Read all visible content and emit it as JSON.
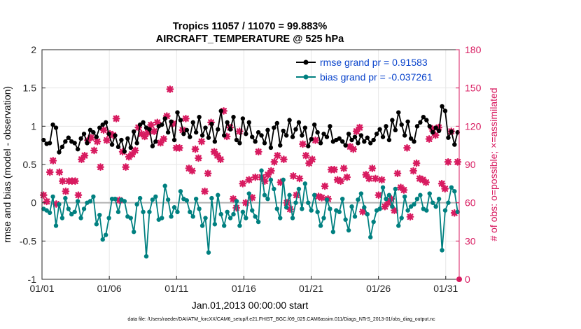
{
  "chart_data": {
    "type": "line",
    "title": "Tropics 11057 / 11070 = 99.883%",
    "subtitle": "AIRCRAFT_TEMPERATURE @ 525 hPa",
    "xlabel": "Jan.01,2013 00:00:00 start",
    "ylabel": "rmse and bias (model - observation)",
    "y2label": "# of obs: o=possible; ×=assimilated",
    "footnote": "data file: /Users/raeder/DAI/ATM_forcXX/CAM6_setup/f.e21.FHIST_BGC.f09_025.CAM6assim.011/Diags_NTrS_2013-01/obs_diag_output.nc",
    "x_tick_labels": [
      "01/01",
      "01/06",
      "01/11",
      "01/16",
      "01/21",
      "01/26",
      "01/31"
    ],
    "x_tick_days": [
      1,
      6,
      11,
      16,
      21,
      26,
      31
    ],
    "xlim": [
      1,
      32
    ],
    "ylim": [
      -1,
      2
    ],
    "y_ticks": [
      -1,
      -0.5,
      0,
      0.5,
      1,
      1.5,
      2
    ],
    "y2lim": [
      0,
      180
    ],
    "y2_ticks": [
      0,
      30,
      60,
      90,
      120,
      150,
      180
    ],
    "grid": true,
    "legend_position": "top-right",
    "colors": {
      "rmse": "#000000",
      "bias": "#008080",
      "obs": "#d81b60",
      "legend_text": "#0a44cc",
      "axis_right": "#d81b60",
      "zero_line": "#b0b0b0"
    },
    "series": [
      {
        "name": "rmse grand pr = 0.91583",
        "axis": "left",
        "values": [
          0.82,
          0.77,
          0.78,
          1.02,
          0.98,
          0.66,
          0.73,
          0.8,
          0.85,
          0.8,
          0.78,
          0.7,
          0.84,
          0.9,
          0.78,
          0.95,
          0.92,
          0.86,
          0.98,
          1.02,
          1.05,
          0.9,
          0.76,
          0.88,
          0.73,
          0.82,
          0.67,
          0.84,
          0.72,
          0.93,
          0.78,
          1.02,
          1.05,
          0.98,
          0.96,
          0.74,
          0.8,
          1.0,
          1.02,
          1.1,
          0.92,
          1.06,
          0.82,
          1.18,
          1.08,
          0.9,
          0.95,
          0.86,
          1.05,
          0.92,
          1.12,
          0.88,
          0.98,
          0.85,
          1.03,
          0.8,
          0.96,
          1.2,
          0.88,
          1.05,
          0.96,
          1.12,
          0.82,
          0.78,
          1.1,
          0.9,
          1.05,
          0.86,
          0.8,
          0.92,
          0.88,
          0.78,
          0.95,
          0.72,
          0.98,
          1.04,
          0.75,
          0.94,
          0.88,
          1.08,
          0.86,
          0.96,
          1.05,
          0.88,
          0.98,
          0.74,
          0.83,
          1.02,
          0.92,
          0.78,
          0.9,
          0.86,
          1.0,
          0.8,
          0.82,
          0.84,
          0.8,
          0.75,
          0.9,
          0.82,
          0.86,
          0.78,
          0.88,
          0.8,
          0.85,
          0.78,
          0.82,
          0.9,
          0.96,
          0.86,
          1.0,
          0.82,
          1.08,
          0.95,
          1.18,
          1.02,
          0.88,
          1.06,
          0.84,
          0.8,
          1.0,
          1.05,
          1.12,
          1.08,
          1.0,
          0.92,
          0.98,
          0.94,
          1.26,
          1.2,
          0.85,
          0.93,
          0.76,
          0.92
        ],
        "markers": "dot"
      },
      {
        "name": "bias grand pr = -0.037261",
        "axis": "left",
        "values": [
          -0.08,
          -0.1,
          -0.13,
          0.08,
          -0.3,
          -0.02,
          -0.2,
          0.06,
          -0.08,
          -0.15,
          -0.12,
          0.02,
          -0.2,
          -0.08,
          0.0,
          0.02,
          0.08,
          -0.28,
          -0.16,
          -0.48,
          -0.42,
          -0.2,
          0.05,
          0.05,
          -0.12,
          0.04,
          0.02,
          -0.18,
          -0.2,
          -0.38,
          -0.02,
          0.06,
          -0.12,
          -0.7,
          -0.12,
          0.04,
          0.08,
          -0.22,
          -0.2,
          0.22,
          0.04,
          -0.18,
          -0.06,
          -0.12,
          0.15,
          0.05,
          0.03,
          -0.12,
          -0.18,
          0.05,
          -0.08,
          -0.3,
          -0.2,
          -0.65,
          0.06,
          -0.28,
          0.1,
          -0.15,
          -0.3,
          -0.12,
          -0.2,
          -0.15,
          0.02,
          -0.3,
          -0.12,
          -0.2,
          0.12,
          -0.1,
          -0.18,
          -0.25,
          0.42,
          0.1,
          0.05,
          0.3,
          0.18,
          -0.08,
          -0.2,
          0.3,
          -0.06,
          0.1,
          -0.2,
          0.0,
          0.18,
          -0.08,
          0.25,
          0.0,
          -0.1,
          0.1,
          -0.12,
          -0.3,
          -0.2,
          0.04,
          -0.08,
          -0.38,
          -0.1,
          -0.12,
          0.05,
          -0.22,
          -0.36,
          -0.05,
          -0.18,
          0.04,
          0.12,
          -0.06,
          -0.15,
          -0.45,
          -0.25,
          -0.1,
          -0.08,
          0.2,
          0.05,
          0.1,
          -0.05,
          0.18,
          -0.3,
          -0.2,
          0.08,
          -0.1,
          -0.05,
          -0.02,
          0.05,
          0.1,
          -0.08,
          -0.1,
          0.12,
          0.0,
          -0.05,
          0.05,
          -0.62,
          -0.1,
          0.0,
          0.2,
          0.15,
          -0.12
        ],
        "markers": "dot"
      },
      {
        "name": "# of obs assimilated",
        "axis": "right",
        "values": [
          66,
          61,
          84,
          93,
          59,
          84,
          77,
          69,
          77,
          77,
          77,
          66,
          94,
          97,
          109,
          111,
          101,
          108,
          88,
          117,
          109,
          114,
          113,
          126,
          62,
          100,
          88,
          96,
          98,
          101,
          119,
          114,
          112,
          115,
          121,
          116,
          123,
          107,
          110,
          128,
          149,
          122,
          103,
          103,
          117,
          126,
          87,
          85,
          102,
          95,
          108,
          69,
          83,
          123,
          100,
          97,
          94,
          132,
          112,
          119,
          63,
          56,
          116,
          75,
          60,
          78,
          64,
          80,
          100,
          80,
          77,
          82,
          85,
          92,
          97,
          76,
          94,
          60,
          55,
          81,
          66,
          79,
          106,
          97,
          91,
          94,
          109,
          65,
          64,
          73,
          63,
          86,
          86,
          78,
          77,
          87,
          80,
          104,
          102,
          116,
          119,
          53,
          82,
          79,
          87,
          79,
          66,
          78,
          57,
          60,
          63,
          54,
          83,
          72,
          70,
          103,
          49,
          85,
          91,
          79,
          78,
          76,
          110,
          118,
          113,
          119,
          75,
          71,
          92,
          116,
          52,
          92
        ],
        "markers": "cross"
      }
    ]
  }
}
